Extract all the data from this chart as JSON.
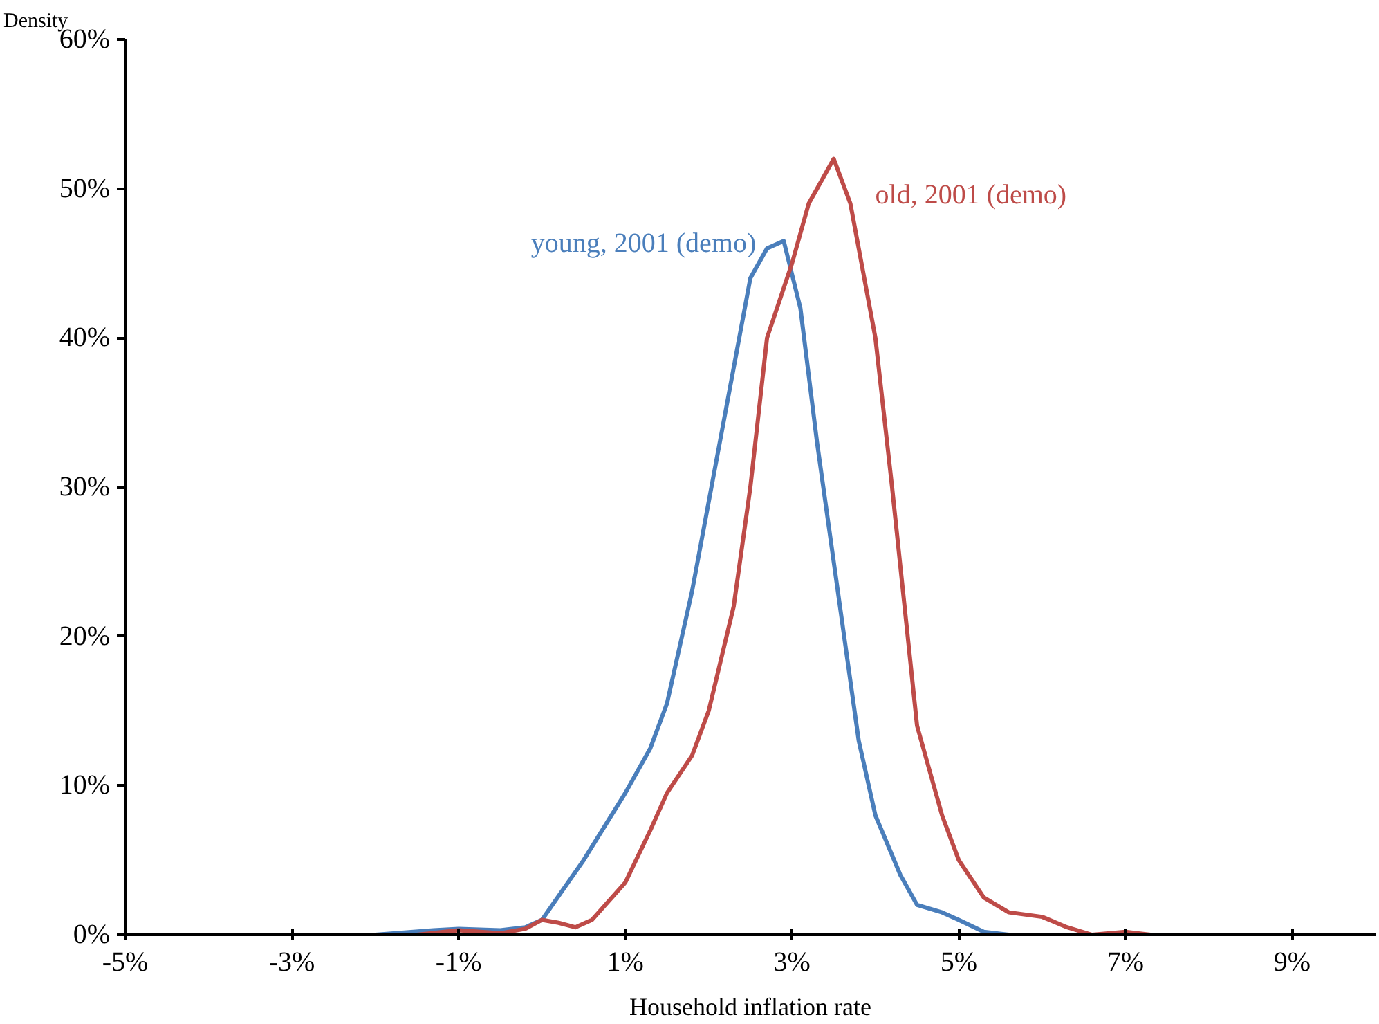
{
  "chart_data": {
    "type": "line",
    "xlabel": "Household inflation rate",
    "ylabel": "Density",
    "xlim": [
      -5,
      10
    ],
    "ylim": [
      0,
      60
    ],
    "xticks": [
      {
        "value": -5,
        "label": "-5%"
      },
      {
        "value": -3,
        "label": "-3%"
      },
      {
        "value": -1,
        "label": "-1%"
      },
      {
        "value": 1,
        "label": "1%"
      },
      {
        "value": 3,
        "label": "3%"
      },
      {
        "value": 5,
        "label": "5%"
      },
      {
        "value": 7,
        "label": "7%"
      },
      {
        "value": 9,
        "label": "9%"
      }
    ],
    "yticks": [
      {
        "value": 0,
        "label": "0%"
      },
      {
        "value": 10,
        "label": "10%"
      },
      {
        "value": 20,
        "label": "20%"
      },
      {
        "value": 30,
        "label": "30%"
      },
      {
        "value": 40,
        "label": "40%"
      },
      {
        "value": 50,
        "label": "50%"
      },
      {
        "value": 60,
        "label": "60%"
      }
    ],
    "grid": false,
    "marker": "none",
    "line_style": "solid",
    "series": [
      {
        "name": "young, 2001 (demo)",
        "color": "#4a7ebb",
        "x": [
          -5,
          -2,
          -1.3,
          -1,
          -0.5,
          -0.2,
          0,
          0.5,
          1,
          1.3,
          1.5,
          1.8,
          2,
          2.3,
          2.5,
          2.7,
          2.9,
          3.1,
          3.3,
          3.5,
          3.8,
          4,
          4.3,
          4.5,
          4.8,
          5,
          5.3,
          5.6,
          10
        ],
        "values": [
          0,
          0,
          0.3,
          0.4,
          0.3,
          0.5,
          1,
          5,
          9.5,
          12.5,
          15.5,
          23,
          29,
          38,
          44,
          46,
          46.5,
          42,
          33,
          25,
          13,
          8,
          4,
          2,
          1.5,
          1,
          0.2,
          0,
          0
        ]
      },
      {
        "name": "old, 2001 (demo)",
        "color": "#be4b48",
        "x": [
          -5,
          -1.5,
          -1,
          -0.5,
          -0.2,
          0,
          0.2,
          0.4,
          0.6,
          1,
          1.3,
          1.5,
          1.8,
          2,
          2.3,
          2.5,
          2.7,
          3,
          3.2,
          3.5,
          3.7,
          4,
          4.2,
          4.5,
          4.8,
          5,
          5.3,
          5.6,
          6,
          6.3,
          6.6,
          7,
          7.3,
          10
        ],
        "values": [
          0,
          0,
          0.3,
          0.1,
          0.4,
          1,
          0.8,
          0.5,
          1,
          3.5,
          7,
          9.5,
          12,
          15,
          22,
          30,
          40,
          45,
          49,
          52,
          49,
          40,
          30,
          14,
          8,
          5,
          2.5,
          1.5,
          1.2,
          0.5,
          0,
          0.2,
          0,
          0
        ]
      }
    ]
  }
}
